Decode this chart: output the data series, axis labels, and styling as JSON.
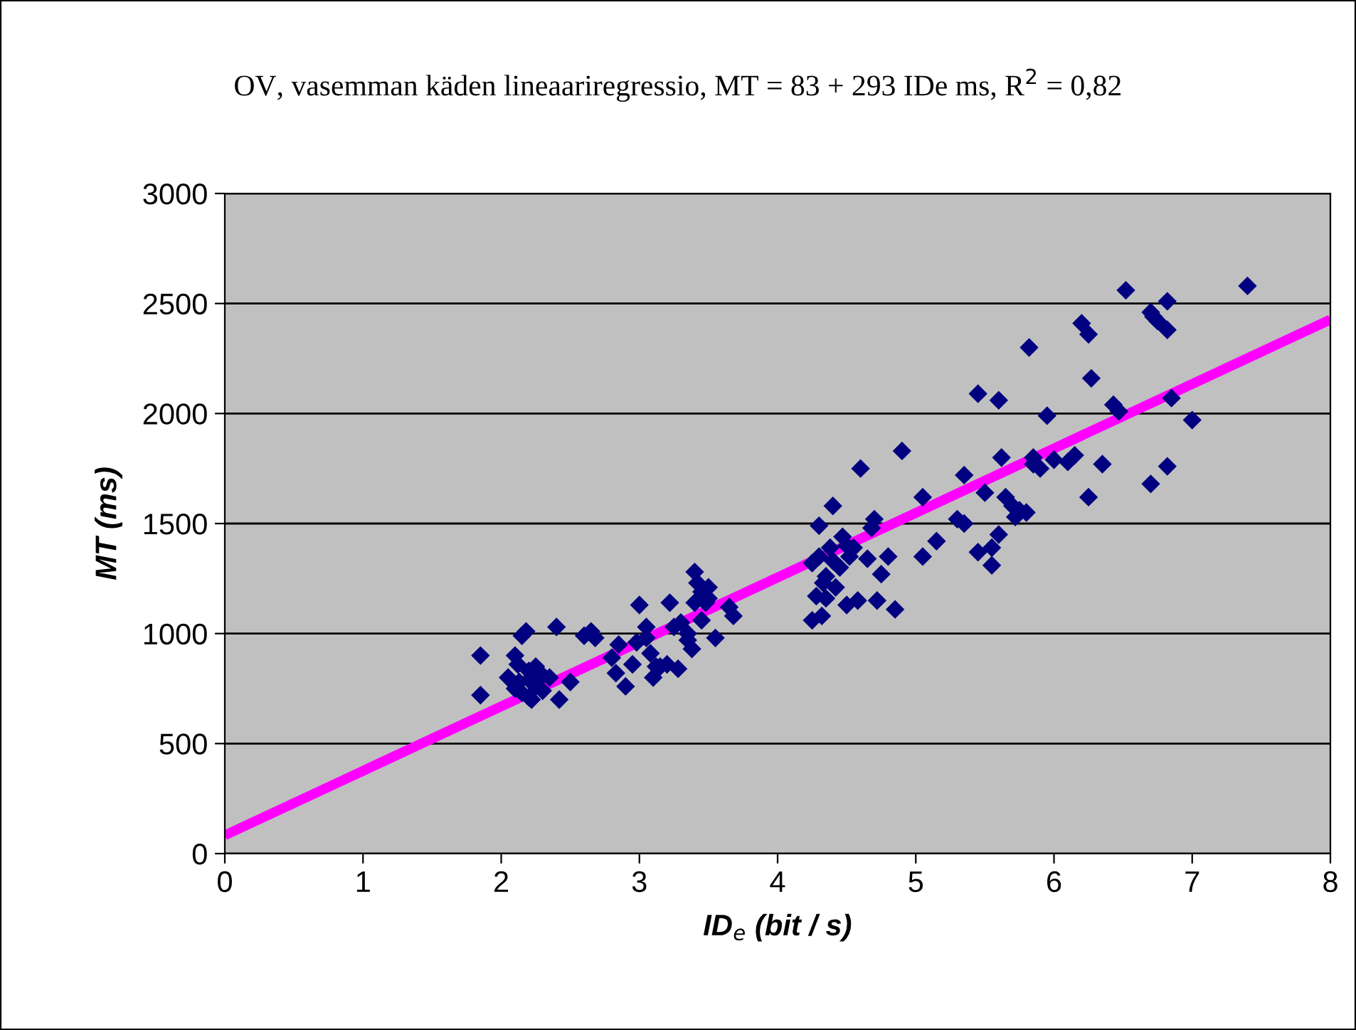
{
  "chart_data": {
    "type": "scatter",
    "title": "OV, vasemman käden lineaariregressio, MT = 83 + 293 IDe ms, R$^{2}$ = 0,82",
    "xlabel": "ID$_{e}$ (bit / s)",
    "ylabel": "MT (ms)",
    "xlim": [
      0,
      8
    ],
    "xticks": [
      0,
      1,
      2,
      3,
      4,
      5,
      6,
      7,
      8
    ],
    "ylim": [
      0,
      3000
    ],
    "yticks": [
      0,
      500,
      1000,
      1500,
      2000,
      2500,
      3000
    ],
    "grid": "y",
    "legend": false,
    "series": [
      {
        "color": "#000080",
        "marker": "diamond",
        "x": [
          1.85,
          1.85,
          2.05,
          2.1,
          2.1,
          2.12,
          2.15,
          2.18,
          2.2,
          2.2,
          2.22,
          2.25,
          2.25,
          2.3,
          2.3,
          2.15,
          2.13,
          2.4,
          2.42,
          2.5,
          2.6,
          2.65,
          2.68,
          2.2,
          2.35,
          2.8,
          2.83,
          2.85,
          2.9,
          2.95,
          2.98,
          3.0,
          3.05,
          3.08,
          3.1,
          3.12,
          3.15,
          3.2,
          3.22,
          3.25,
          3.28,
          3.3,
          3.35,
          3.38,
          3.4,
          3.42,
          3.45,
          3.45,
          3.48,
          3.5,
          3.5,
          3.55,
          3.65,
          3.68,
          3.4,
          3.35,
          3.05,
          4.25,
          4.25,
          4.28,
          4.3,
          4.32,
          4.33,
          4.35,
          4.35,
          4.38,
          4.4,
          4.42,
          4.45,
          4.47,
          4.5,
          4.52,
          4.55,
          4.58,
          4.6,
          4.65,
          4.68,
          4.7,
          4.72,
          4.75,
          4.8,
          4.85,
          4.9,
          4.3,
          4.4,
          4.5,
          5.05,
          5.05,
          5.15,
          5.3,
          5.35,
          5.35,
          5.45,
          5.45,
          5.5,
          5.55,
          5.55,
          5.6,
          5.6,
          5.62,
          5.65,
          5.7,
          5.72,
          5.75,
          5.8,
          5.82,
          5.85,
          5.85,
          5.9,
          5.95,
          6.0,
          6.1,
          6.15,
          6.2,
          6.25,
          6.25,
          6.27,
          6.35,
          6.43,
          6.47,
          6.52,
          6.7,
          6.72,
          6.7,
          6.75,
          6.82,
          6.82,
          6.82,
          6.85,
          7.0,
          7.4
        ],
        "values": [
          900,
          720,
          800,
          750,
          900,
          860,
          990,
          1010,
          830,
          790,
          700,
          760,
          850,
          740,
          810,
          730,
          780,
          1030,
          700,
          780,
          990,
          1010,
          980,
          710,
          800,
          890,
          820,
          950,
          760,
          860,
          960,
          1130,
          980,
          910,
          800,
          850,
          850,
          860,
          1140,
          1030,
          840,
          1050,
          970,
          930,
          1280,
          1230,
          1060,
          1190,
          1140,
          1210,
          1160,
          980,
          1120,
          1080,
          1140,
          1000,
          1030,
          1060,
          1320,
          1170,
          1490,
          1080,
          1230,
          1260,
          1160,
          1390,
          1580,
          1210,
          1300,
          1440,
          1130,
          1350,
          1390,
          1150,
          1750,
          1340,
          1480,
          1520,
          1150,
          1270,
          1350,
          1110,
          1830,
          1350,
          1330,
          1400,
          1620,
          1350,
          1420,
          1520,
          1720,
          1500,
          2090,
          1370,
          1640,
          1390,
          1310,
          2060,
          1450,
          1800,
          1620,
          1580,
          1530,
          1560,
          1550,
          2300,
          1800,
          1770,
          1750,
          1990,
          1790,
          1780,
          1810,
          2410,
          2360,
          1620,
          2160,
          1770,
          2040,
          2010,
          2560,
          2460,
          2440,
          1680,
          2420,
          2510,
          2380,
          1760,
          2070,
          1970,
          2580
        ]
      },
      {
        "type": "line",
        "color": "#ff00ff",
        "line_style": "solid",
        "x": [
          0,
          8
        ],
        "values": [
          83,
          2427
        ]
      }
    ]
  }
}
